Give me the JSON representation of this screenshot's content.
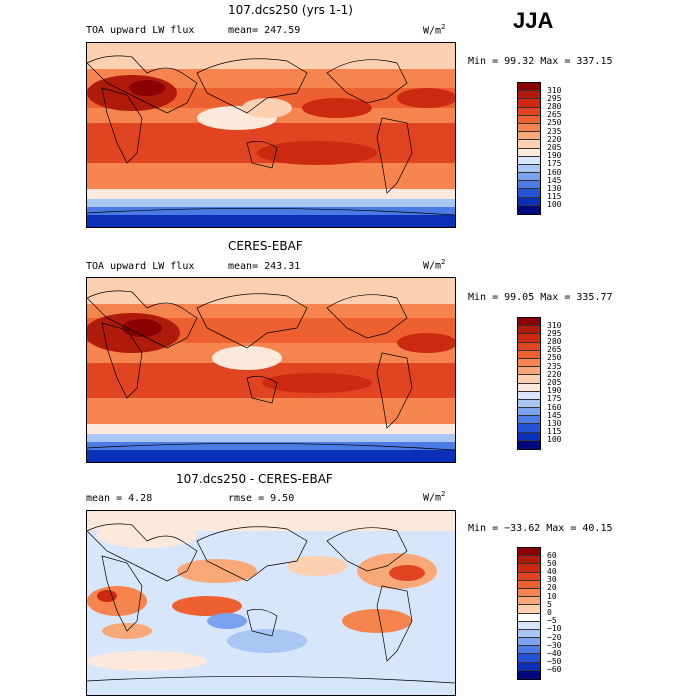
{
  "season": "JJA",
  "panels": [
    {
      "title": "107.dcs250 (yrs 1-1)",
      "variable": "TOA upward LW flux",
      "mean_text": "mean= 247.59",
      "units_main": "W/m",
      "units_exp": "2",
      "minmax_text": "Min =  99.32 Max = 337.15",
      "levels": [
        "310",
        "295",
        "280",
        "265",
        "250",
        "235",
        "220",
        "205",
        "190",
        "175",
        "160",
        "145",
        "130",
        "115",
        "100"
      ]
    },
    {
      "title": "CERES-EBAF",
      "variable": "TOA upward LW flux",
      "mean_text": "mean= 243.31",
      "units_main": "W/m",
      "units_exp": "2",
      "minmax_text": "Min =  99.05 Max = 335.77",
      "levels": [
        "310",
        "295",
        "280",
        "265",
        "250",
        "235",
        "220",
        "205",
        "190",
        "175",
        "160",
        "145",
        "130",
        "115",
        "100"
      ]
    },
    {
      "title": "107.dcs250 - CERES-EBAF",
      "variable": "mean =    4.28",
      "mean_text": "rmse =   9.50",
      "units_main": "W/m",
      "units_exp": "2",
      "minmax_text": "Min = −33.62 Max =  40.15",
      "levels": [
        "60",
        "50",
        "40",
        "30",
        "20",
        "10",
        "5",
        "0",
        "−5",
        "−10",
        "−20",
        "−30",
        "−40",
        "−50",
        "−60"
      ]
    }
  ],
  "colors": {
    "scale": [
      "#8b0000",
      "#b01a0a",
      "#cc2a10",
      "#e04420",
      "#ee6030",
      "#f5844f",
      "#f9a978",
      "#fcd0b0",
      "#fde8dc",
      "#d7e6fb",
      "#a9c6f5",
      "#7aa2ee",
      "#4c7be6",
      "#2553d6",
      "#0a2fb8",
      "#000a80"
    ]
  }
}
